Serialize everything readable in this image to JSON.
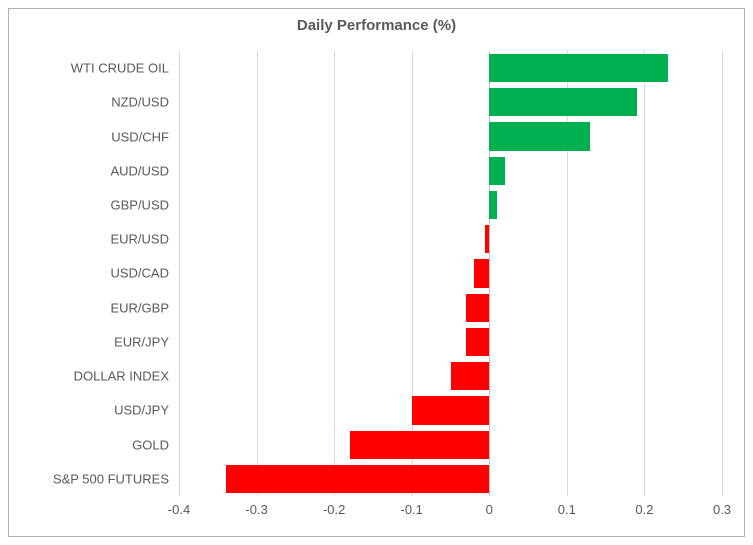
{
  "chart": {
    "type": "bar-horizontal",
    "title": "Daily Performance (%)",
    "title_fontsize": 15,
    "title_color": "#595959",
    "label_fontsize": 13,
    "label_color": "#595959",
    "tick_fontsize": 13,
    "background_color": "#ffffff",
    "border_color": "#b0b0b0",
    "grid_color": "#d9d9d9",
    "axis_color": "#bfbfbf",
    "positive_color": "#00b050",
    "negative_color": "#ff0000",
    "xlim": [
      -0.4,
      0.3
    ],
    "xtick_step": 0.1,
    "xticks": [
      -0.4,
      -0.3,
      -0.2,
      -0.1,
      0,
      0.1,
      0.2,
      0.3
    ],
    "categories": [
      "WTI CRUDE OIL",
      "NZD/USD",
      "USD/CHF",
      "AUD/USD",
      "GBP/USD",
      "EUR/USD",
      "USD/CAD",
      "EUR/GBP",
      "EUR/JPY",
      "DOLLAR INDEX",
      "USD/JPY",
      "GOLD",
      "S&P 500 FUTURES"
    ],
    "values": [
      0.23,
      0.19,
      0.13,
      0.02,
      0.01,
      -0.005,
      -0.02,
      -0.03,
      -0.03,
      -0.05,
      -0.1,
      -0.18,
      -0.34
    ],
    "bar_gap_ratio": 0.18
  }
}
